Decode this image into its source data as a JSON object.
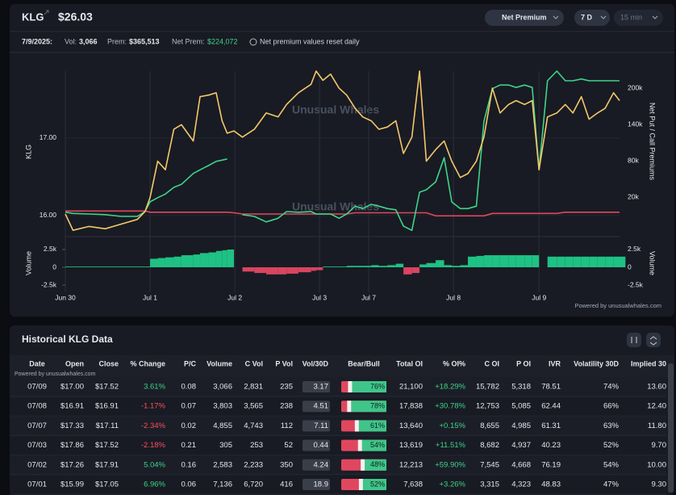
{
  "header": {
    "ticker": "KLG",
    "price": "$26.03",
    "buttons": [
      "Net Premium",
      "7 D",
      "15 min"
    ]
  },
  "summary": {
    "date": "7/9/2025:",
    "vol_label": "Vol:",
    "vol": "3,066",
    "prem_label": "Prem:",
    "prem": "$365,513",
    "net_prem_label": "Net Prem:",
    "net_prem": "$224,072",
    "note": "Net premium values reset daily"
  },
  "chart_data": {
    "type": "line",
    "watermark": "Unusual Whales",
    "ylabel": "KLG",
    "y2label": "Net Put / Call Premiums",
    "credit": "Powered by unusualwhales.com",
    "x": [
      0,
      0.09,
      0.28,
      0.47,
      0.66,
      0.85,
      0.94,
      1.0,
      1.09,
      1.18,
      1.28,
      1.37,
      1.51,
      1.59,
      1.69,
      1.78,
      1.85,
      1.91,
      1.99,
      2.09,
      2.23,
      2.37,
      2.51,
      2.61,
      2.75,
      2.9,
      2.96,
      3.04,
      3.13,
      3.23,
      3.32,
      3.42,
      3.51,
      3.61,
      3.7,
      3.8,
      3.9,
      3.99,
      4.09,
      4.18,
      4.26,
      4.37,
      4.47,
      4.56,
      4.66,
      4.75,
      4.85,
      4.94,
      5.04,
      5.13,
      5.23,
      5.32,
      5.42,
      5.51,
      5.59,
      5.69,
      5.8,
      5.9,
      5.99,
      6.09,
      6.18,
      6.28,
      6.37,
      6.47,
      6.54
    ],
    "xlim": [
      0,
      6.54
    ],
    "xticks": [
      {
        "value": 0,
        "label": "Jun 30"
      },
      {
        "value": 1,
        "label": "Jul 1"
      },
      {
        "value": 2,
        "label": "Jul 2"
      },
      {
        "value": 3,
        "label": "Jul 3"
      },
      {
        "value": 3.58,
        "label": "Jul 7"
      },
      {
        "value": 4.58,
        "label": "Jul 8"
      },
      {
        "value": 5.59,
        "label": "Jul 9"
      }
    ],
    "ylim": [
      15.76,
      17.86
    ],
    "yticks": [
      {
        "value": 16,
        "label": "16.00"
      },
      {
        "value": 17,
        "label": "17.00"
      }
    ],
    "y2lim": [
      -41300,
      228000
    ],
    "y2ticks": [
      {
        "value": 20000,
        "label": "20k"
      },
      {
        "value": 80000,
        "label": "80k"
      },
      {
        "value": 140000,
        "label": "140k"
      },
      {
        "value": 200000,
        "label": "200k"
      }
    ],
    "series": [
      {
        "color": "#f5c76a",
        "values": [
          16.02,
          15.81,
          15.86,
          15.83,
          15.89,
          15.95,
          16.05,
          16.23,
          16.7,
          16.59,
          17.11,
          17.17,
          16.96,
          17.53,
          17.55,
          17.58,
          17.22,
          17.06,
          17.09,
          17.01,
          17.11,
          17.32,
          17.27,
          17.43,
          17.58,
          17.69,
          17.86,
          17.74,
          17.82,
          17.64,
          17.55,
          17.38,
          17.27,
          17.22,
          17.11,
          17.14,
          17.22,
          16.8,
          17.01,
          17.86,
          16.7,
          16.85,
          16.96,
          16.7,
          16.49,
          16.54,
          16.7,
          17.01,
          17.64,
          17.32,
          17.43,
          17.48,
          17.43,
          17.48,
          16.59,
          17.27,
          17.32,
          17.43,
          17.32,
          17.53,
          17.24,
          17.32,
          17.38,
          17.58,
          17.48
        ]
      },
      {
        "color": "#3fd38a",
        "axis": "y2",
        "values": [
          -5000,
          -7000,
          -8000,
          -9000,
          -12000,
          -12000,
          -4000,
          12000,
          19000,
          25000,
          36000,
          41000,
          59000,
          65000,
          72000,
          79000,
          81000,
          83000,
          null,
          -9000,
          -12000,
          -21000,
          -15000,
          -4000,
          -5000,
          -4000,
          -8000,
          -8000,
          -8000,
          -15000,
          -8000,
          5000,
          1000,
          8000,
          5000,
          1000,
          -1000,
          -28000,
          -35000,
          28000,
          32000,
          45000,
          85000,
          12000,
          1000,
          1000,
          5000,
          145000,
          199000,
          205000,
          205000,
          201000,
          205000,
          201000,
          65000,
          212000,
          228000,
          212000,
          212000,
          215000,
          212000,
          212000,
          212000,
          212000,
          212000
        ]
      },
      {
        "color": "#e0475e",
        "axis": "y2",
        "values": [
          -3000,
          -3000,
          -3000,
          -3000,
          -3000,
          -3000,
          -3000,
          -5000,
          -5000,
          -5000,
          -5000,
          -5000,
          -5000,
          -5000,
          -5000,
          -5000,
          -5000,
          -5000,
          -6000,
          -8000,
          -8000,
          -8000,
          -8000,
          -8000,
          -8000,
          -8000,
          -8000,
          -8000,
          -8000,
          -8000,
          -8000,
          -6000,
          -6000,
          -6000,
          -6000,
          -6000,
          -6000,
          -6000,
          -6000,
          -6000,
          -6000,
          -11000,
          -11000,
          -11000,
          -11000,
          -11000,
          -11000,
          -11000,
          -7000,
          -7000,
          -7000,
          -7000,
          -7000,
          -7000,
          -7000,
          -7000,
          -7000,
          -5000,
          -5000,
          -5000,
          -5000,
          -5000,
          -5000,
          -5000,
          -5000
        ]
      }
    ],
    "volume": {
      "label": "Volume",
      "color": "#1fc184",
      "negative_color": "#d94560",
      "ylim": [
        -3520,
        4090
      ],
      "yticks": [
        {
          "value": 2500,
          "label": "2.5k"
        },
        0,
        {
          "value": -2500,
          "label": "-2.5k"
        }
      ],
      "values": [
        100,
        100,
        100,
        100,
        100,
        100,
        100,
        1200,
        1300,
        1400,
        1500,
        1700,
        1800,
        2000,
        2100,
        2300,
        2400,
        2500,
        0,
        -600,
        -800,
        -1000,
        -1000,
        -900,
        -700,
        -500,
        -400,
        100,
        100,
        100,
        200,
        200,
        200,
        300,
        200,
        300,
        500,
        -1000,
        -800,
        400,
        600,
        1000,
        300,
        200,
        300,
        1500,
        1600,
        1700,
        1700,
        1700,
        1700,
        1700,
        1700,
        1700,
        0,
        1500,
        1500,
        1500,
        1500,
        1500,
        1500,
        1500,
        1500,
        1500,
        1500
      ]
    }
  },
  "table": {
    "title": "Historical KLG Data",
    "credit": "Powered by unusualwhales.com",
    "columns": [
      "Date",
      "Open",
      "Close",
      "% Change",
      "P/C",
      "Volume",
      "C Vol",
      "P Vol",
      "Vol/30D",
      "Bear/Bull",
      "Total OI",
      "% OI%",
      "C OI",
      "P OI",
      "IVR",
      "Volatility 30D",
      "Implied 30"
    ],
    "rows": [
      [
        "07/09",
        "$17.00",
        "$17.52",
        "3.61%",
        "0.08",
        "3,066",
        "2,831",
        "235",
        "3.17",
        {
          "value": 76,
          "label": "76%"
        },
        "21,100",
        "+18.29%",
        "15,782",
        "5,318",
        "78.51",
        "74%",
        "13.60"
      ],
      [
        "07/08",
        "$16.91",
        "$16.91",
        "-1.17%",
        "0.07",
        "3,803",
        "3,565",
        "238",
        "4.51",
        {
          "value": 78,
          "label": "78%"
        },
        "17,838",
        "+30.78%",
        "12,753",
        "5,085",
        "62.44",
        "66%",
        "12.40"
      ],
      [
        "07/07",
        "$17.33",
        "$17.11",
        "-2.34%",
        "0.02",
        "4,855",
        "4,743",
        "112",
        "7.11",
        {
          "value": 61,
          "label": "61%"
        },
        "13,640",
        "+0.15%",
        "8,655",
        "4,985",
        "61.31",
        "63%",
        "11.80"
      ],
      [
        "07/03",
        "$17.86",
        "$17.52",
        "-2.18%",
        "0.21",
        "305",
        "253",
        "52",
        "0.44",
        {
          "value": 54,
          "label": "54%"
        },
        "13,619",
        "+11.51%",
        "8,682",
        "4,937",
        "40.23",
        "52%",
        "9.70"
      ],
      [
        "07/02",
        "$17.26",
        "$17.91",
        "5.04%",
        "0.16",
        "2,583",
        "2,233",
        "350",
        "4.24",
        {
          "value": 48,
          "label": "48%"
        },
        "12,213",
        "+59.90%",
        "7,545",
        "4,668",
        "76.19",
        "54%",
        "10.00"
      ],
      [
        "07/01",
        "$15.99",
        "$17.05",
        "6.96%",
        "0.06",
        "7,136",
        "6,720",
        "416",
        "18.9",
        {
          "value": 52,
          "label": "52%"
        },
        "7,638",
        "+3.26%",
        "3,315",
        "4,323",
        "48.83",
        "47%",
        "9.30"
      ]
    ]
  }
}
